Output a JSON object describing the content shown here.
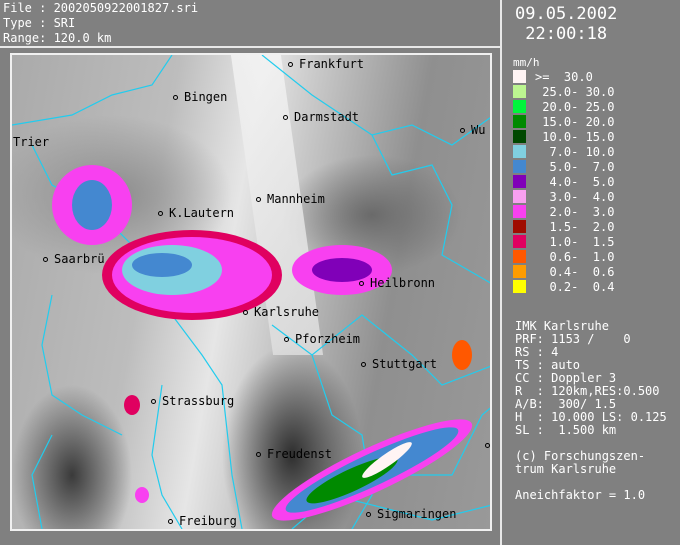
{
  "header": {
    "file": "File : 2002050922001827.sri",
    "type": "Type : SRI",
    "range": "Range: 120.0 km"
  },
  "datetime": {
    "date": "09.05.2002",
    "time": " 22:00:18"
  },
  "legend": {
    "unit": "mm/h",
    "items": [
      {
        "label": ">=  30.0",
        "color": "#fff4f4"
      },
      {
        "label": " 25.0- 30.0",
        "color": "#bcf590"
      },
      {
        "label": " 20.0- 25.0",
        "color": "#00f53c"
      },
      {
        "label": " 15.0- 20.0",
        "color": "#008a00"
      },
      {
        "label": " 10.0- 15.0",
        "color": "#004800"
      },
      {
        "label": "  7.0- 10.0",
        "color": "#80d0e0"
      },
      {
        "label": "  5.0-  7.0",
        "color": "#4488d0"
      },
      {
        "label": "  4.0-  5.0",
        "color": "#8000b8"
      },
      {
        "label": "  3.0-  4.0",
        "color": "#f8a0f0"
      },
      {
        "label": "  2.0-  3.0",
        "color": "#f840f0"
      },
      {
        "label": "  1.5-  2.0",
        "color": "#a00c00"
      },
      {
        "label": "  1.0-  1.5",
        "color": "#e00060"
      },
      {
        "label": "  0.6-  1.0",
        "color": "#ff5800"
      },
      {
        "label": "  0.4-  0.6",
        "color": "#ff9c00"
      },
      {
        "label": "  0.2-  0.4",
        "color": "#ffff00"
      }
    ]
  },
  "info": {
    "lines": [
      "IMK Karlsruhe",
      "PRF: 1153 /    0",
      "RS : 4",
      "TS : auto",
      "CC : Doppler 3",
      "R  : 120km,RES:0.500",
      "A/B:  300/ 1.5",
      "H  : 10.000 LS: 0.125",
      "SL :  1.500 km",
      "",
      "(c) Forschungszen-",
      "trum Karlsruhe",
      "",
      "Aneichfaktor = 1.0"
    ]
  },
  "cities": [
    {
      "name": "Frankfurt",
      "dot": true
    },
    {
      "name": "Bingen",
      "dot": true
    },
    {
      "name": "Darmstadt",
      "dot": true
    },
    {
      "name": "Wu",
      "dot": true
    },
    {
      "name": "Trier",
      "dot": false
    },
    {
      "name": "K.Lautern",
      "dot": true
    },
    {
      "name": "Mannheim",
      "dot": true
    },
    {
      "name": "Saarbrü",
      "dot": true
    },
    {
      "name": "Heilbronn",
      "dot": true
    },
    {
      "name": "Karlsruhe",
      "dot": true
    },
    {
      "name": "Pforzheim",
      "dot": true
    },
    {
      "name": "Stuttgart",
      "dot": true
    },
    {
      "name": "Strassburg",
      "dot": true
    },
    {
      "name": "Freudenst",
      "dot": true
    },
    {
      "name": "Sigmaringen",
      "dot": true
    },
    {
      "name": "Freiburg",
      "dot": true
    }
  ]
}
